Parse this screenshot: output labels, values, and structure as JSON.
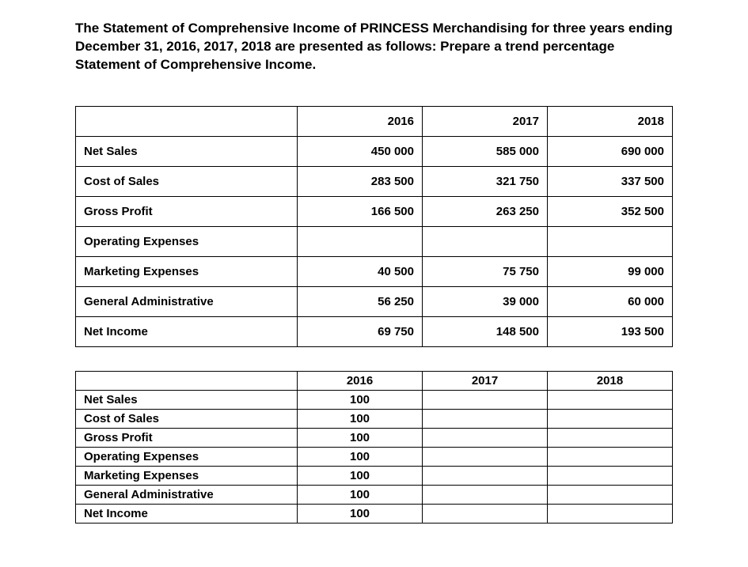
{
  "title": "The Statement of Comprehensive Income of PRINCESS Merchandising for three years ending December 31, 2016, 2017, 2018 are presented as follows:  Prepare a trend percentage Statement of Comprehensive Income.",
  "table1": {
    "headers": [
      "2016",
      "2017",
      "2018"
    ],
    "rows": [
      {
        "label": "Net Sales",
        "values": [
          "450 000",
          "585 000",
          "690 000"
        ]
      },
      {
        "label": "Cost of Sales",
        "values": [
          "283 500",
          "321 750",
          "337 500"
        ]
      },
      {
        "label": "Gross Profit",
        "values": [
          "166 500",
          "263 250",
          "352 500"
        ]
      },
      {
        "label": "Operating Expenses",
        "values": [
          "",
          "",
          ""
        ]
      },
      {
        "label": "Marketing Expenses",
        "values": [
          "40 500",
          "75 750",
          "99 000"
        ]
      },
      {
        "label": "General Administrative",
        "values": [
          "56 250",
          "39 000",
          "60 000"
        ]
      },
      {
        "label": "Net Income",
        "values": [
          "69 750",
          "148 500",
          "193 500"
        ]
      }
    ]
  },
  "table2": {
    "headers": [
      "2016",
      "2017",
      "2018"
    ],
    "rows": [
      {
        "label": "Net Sales",
        "values": [
          "100",
          "",
          ""
        ]
      },
      {
        "label": "Cost of Sales",
        "values": [
          "100",
          "",
          ""
        ]
      },
      {
        "label": "Gross Profit",
        "values": [
          "100",
          "",
          ""
        ]
      },
      {
        "label": "Operating Expenses",
        "values": [
          "100",
          "",
          ""
        ]
      },
      {
        "label": "Marketing Expenses",
        "values": [
          "100",
          "",
          ""
        ]
      },
      {
        "label": "General Administrative",
        "values": [
          "100",
          "",
          ""
        ]
      },
      {
        "label": "Net Income",
        "values": [
          "100",
          "",
          ""
        ]
      }
    ]
  },
  "styling": {
    "background_color": "#ffffff",
    "text_color": "#000000",
    "border_color": "#000000",
    "font_family": "Arial",
    "title_fontsize": 17,
    "table_fontsize": 15,
    "font_weight": "bold",
    "table1_row_height": 38,
    "table2_row_height": 24,
    "label_col_width": 280,
    "value_col_width": 158
  }
}
